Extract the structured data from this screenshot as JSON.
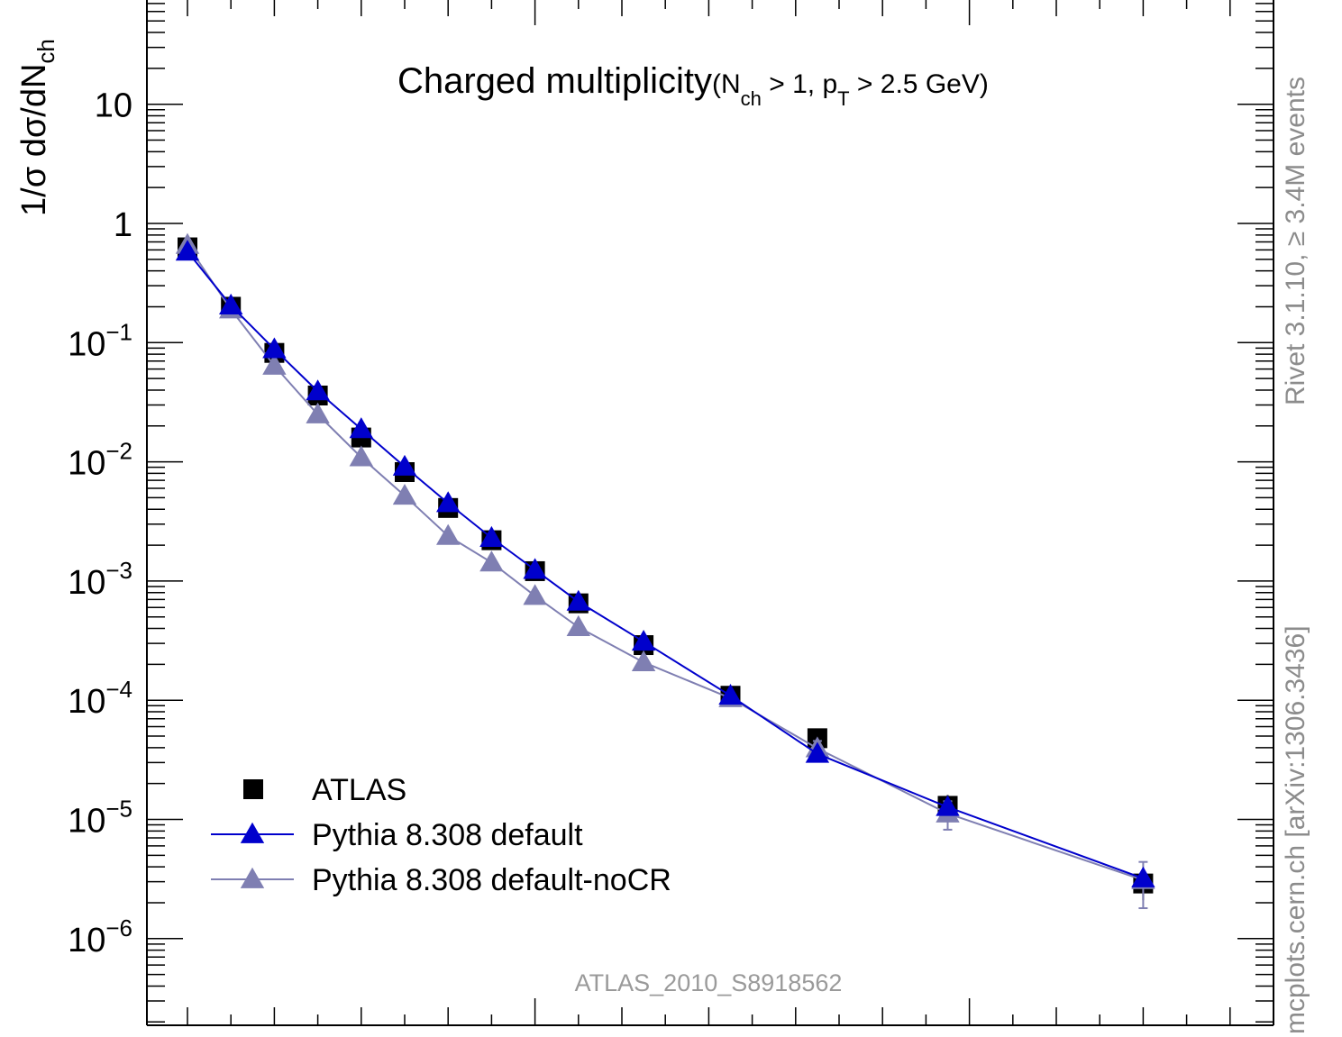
{
  "chart_data": {
    "type": "scatter",
    "title": "Charged multiplicity",
    "title_suffix": "(N",
    "title_sub1": "ch",
    "title_mid": " > 1, p",
    "title_sub2": "T",
    "title_end": " > 2.5 GeV)",
    "ylabel": "1/σ dσ/dN",
    "ylabel_sub": "ch",
    "yscale": "log",
    "ylim": [
      2e-07,
      80
    ],
    "xlim": [
      0,
      27
    ],
    "y_ticks": [
      {
        "v": 10,
        "base": "10",
        "exp": ""
      },
      {
        "v": 1,
        "base": "1",
        "exp": ""
      },
      {
        "v": 0.1,
        "base": "10",
        "exp": "−1"
      },
      {
        "v": 0.01,
        "base": "10",
        "exp": "−2"
      },
      {
        "v": 0.001,
        "base": "10",
        "exp": "−3"
      },
      {
        "v": 0.0001,
        "base": "10",
        "exp": "−4"
      },
      {
        "v": 1e-05,
        "base": "10",
        "exp": "−5"
      },
      {
        "v": 1e-06,
        "base": "10",
        "exp": "−6"
      }
    ],
    "series": [
      {
        "name": "ATLAS",
        "marker": "square",
        "color": "#000000",
        "x": [
          2,
          3,
          4,
          5,
          6,
          7,
          8,
          9,
          10,
          11,
          12.5,
          14.5,
          16.5,
          19.5,
          24
        ],
        "y": [
          0.63,
          0.2,
          0.082,
          0.036,
          0.016,
          0.0082,
          0.0041,
          0.0022,
          0.00121,
          0.00065,
          0.00029,
          0.000109,
          4.8e-05,
          1.3e-05,
          2.9e-06
        ],
        "yerr": [
          0,
          0,
          0,
          0,
          0,
          0,
          0,
          0,
          0,
          0,
          0,
          0,
          6e-06,
          3e-06,
          8e-07
        ]
      },
      {
        "name": "Pythia 8.308 default",
        "marker": "triangle",
        "color": "#0000cc",
        "x": [
          2,
          3,
          4,
          5,
          6,
          7,
          8,
          9,
          10,
          11,
          12.5,
          14.5,
          16.5,
          19.5,
          24
        ],
        "y": [
          0.58,
          0.205,
          0.088,
          0.039,
          0.0188,
          0.0091,
          0.0045,
          0.0023,
          0.00124,
          0.00067,
          0.00031,
          0.000109,
          3.55e-05,
          1.27e-05,
          3.2e-06
        ]
      },
      {
        "name": "Pythia 8.308 default-noCR",
        "marker": "triangle",
        "color": "#7f7fb2",
        "x": [
          2,
          3,
          4,
          5,
          6,
          7,
          8,
          9,
          10,
          11,
          12.5,
          14.5,
          16.5,
          19.5,
          24
        ],
        "y": [
          0.66,
          0.19,
          0.064,
          0.025,
          0.0109,
          0.0052,
          0.00239,
          0.00143,
          0.00075,
          0.00041,
          0.000208,
          0.000104,
          3.95e-05,
          1.12e-05,
          3.1e-06
        ],
        "yerr": [
          0,
          0,
          0,
          0,
          0,
          0,
          0,
          0,
          0,
          0,
          0,
          0,
          6e-06,
          3e-06,
          1.3e-06
        ]
      }
    ],
    "legend_position": "bottom-left",
    "watermark": "ATLAS_2010_S8918562",
    "side_text_top": "Rivet 3.1.10,  ≥ 3.4M events",
    "side_text_bottom": "mcplots.cern.ch [arXiv:1306.3436]"
  }
}
